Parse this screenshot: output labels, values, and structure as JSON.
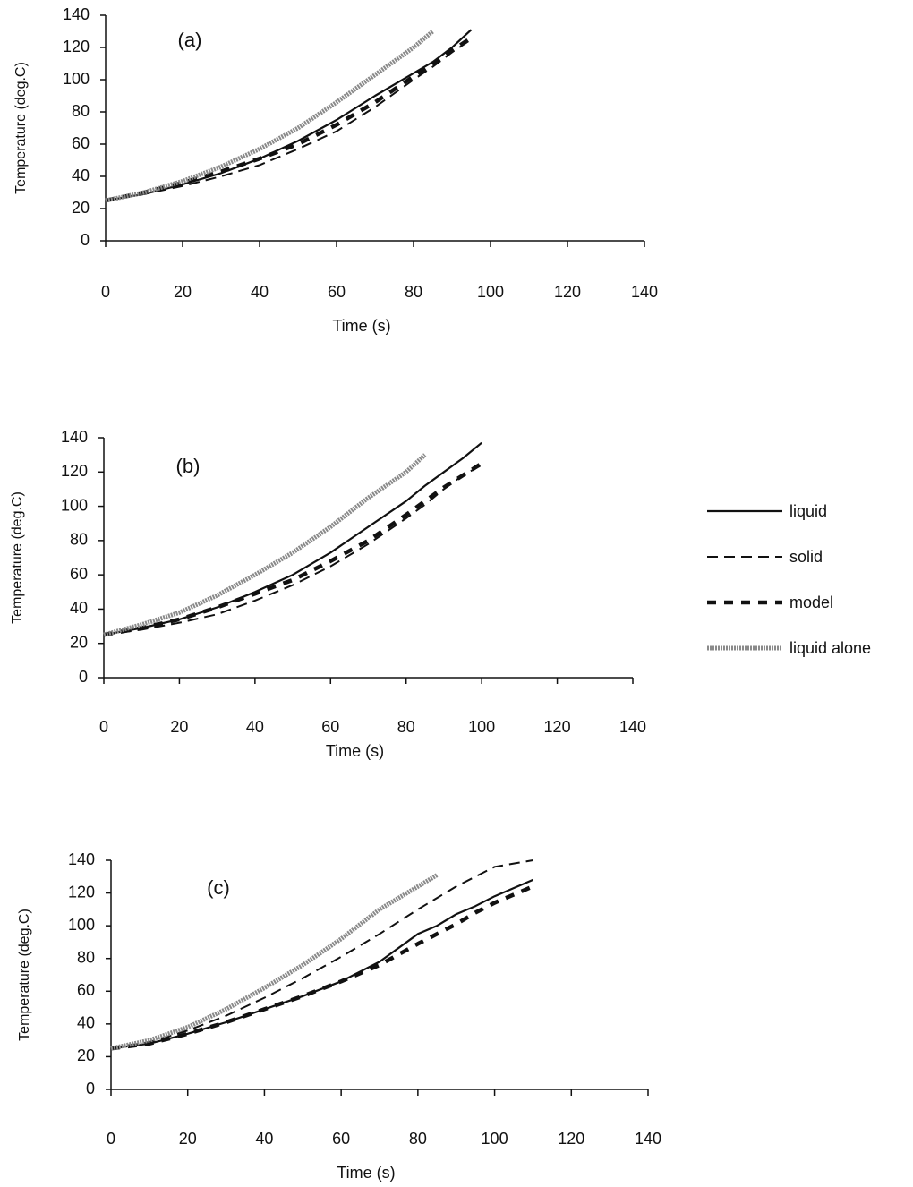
{
  "chart_data": [
    {
      "type": "line",
      "title": "(a)",
      "xlabel": "Time (s)",
      "ylabel": "Temperature (deg.C)",
      "x": [
        0,
        10,
        20,
        30,
        40,
        50,
        60,
        70,
        80,
        85,
        90,
        95,
        100,
        110
      ],
      "series": [
        {
          "color": "#111111",
          "style": "solid",
          "values": [
            25,
            29,
            35,
            42,
            51,
            62,
            75,
            90,
            104,
            111,
            120,
            131,
            null,
            null
          ]
        },
        {
          "color": "#111111",
          "style": "dashed",
          "values": [
            25,
            29,
            34,
            40,
            47,
            57,
            68,
            83,
            100,
            108,
            117,
            125,
            null,
            null
          ]
        },
        {
          "color": "#111111",
          "style": "thick-dashed",
          "values": [
            25,
            30,
            36,
            43,
            51,
            60,
            72,
            86,
            102,
            110,
            118,
            126,
            null,
            null
          ]
        },
        {
          "color": "#8a8a8a",
          "style": "hatched",
          "values": [
            25,
            30,
            37,
            46,
            57,
            70,
            86,
            103,
            120,
            130,
            null,
            null,
            null,
            null
          ]
        }
      ],
      "xlim": [
        0,
        140
      ],
      "xticks": [
        0,
        20,
        40,
        60,
        80,
        100,
        120,
        140
      ],
      "ylim": [
        0,
        140
      ],
      "yticks": [
        0,
        20,
        40,
        60,
        80,
        100,
        120,
        140
      ],
      "grid": false
    },
    {
      "type": "line",
      "title": "(b)",
      "xlabel": "Time (s)",
      "ylabel": "Temperature (deg.C)",
      "x": [
        0,
        10,
        20,
        30,
        40,
        50,
        60,
        70,
        80,
        85,
        90,
        95,
        100,
        110
      ],
      "series": [
        {
          "name": "liquid",
          "color": "#111111",
          "style": "solid",
          "values": [
            25,
            29,
            34,
            41,
            50,
            60,
            73,
            88,
            103,
            112,
            120,
            128,
            137,
            null
          ]
        },
        {
          "name": "solid",
          "color": "#111111",
          "style": "dashed",
          "values": [
            25,
            28,
            32,
            37,
            45,
            54,
            65,
            78,
            93,
            101,
            110,
            118,
            124,
            null
          ]
        },
        {
          "name": "model",
          "color": "#111111",
          "style": "thick-dashed",
          "values": [
            25,
            29,
            34,
            41,
            49,
            57,
            68,
            80,
            95,
            103,
            111,
            118,
            125,
            null
          ]
        },
        {
          "name": "liquid alone",
          "color": "#8a8a8a",
          "style": "hatched",
          "values": [
            25,
            31,
            38,
            48,
            60,
            73,
            88,
            105,
            120,
            130,
            null,
            null,
            null,
            null
          ]
        }
      ],
      "legend": "right",
      "xlim": [
        0,
        140
      ],
      "xticks": [
        0,
        20,
        40,
        60,
        80,
        100,
        120,
        140
      ],
      "ylim": [
        0,
        140
      ],
      "yticks": [
        0,
        20,
        40,
        60,
        80,
        100,
        120,
        140
      ],
      "grid": false
    },
    {
      "type": "line",
      "title": "(c)",
      "xlabel": "Time (s)",
      "ylabel": "Temperature (deg.C)",
      "x": [
        0,
        10,
        20,
        30,
        40,
        50,
        60,
        70,
        80,
        85,
        90,
        95,
        100,
        110
      ],
      "series": [
        {
          "color": "#111111",
          "style": "solid",
          "values": [
            25,
            28,
            34,
            41,
            49,
            57,
            66,
            78,
            95,
            100,
            107,
            112,
            118,
            128
          ]
        },
        {
          "color": "#111111",
          "style": "dashed",
          "values": [
            25,
            29,
            36,
            45,
            56,
            68,
            81,
            95,
            110,
            117,
            124,
            130,
            136,
            140
          ]
        },
        {
          "color": "#111111",
          "style": "thick-dashed",
          "values": [
            25,
            28,
            34,
            41,
            49,
            57,
            66,
            76,
            89,
            95,
            101,
            108,
            114,
            124
          ]
        },
        {
          "color": "#8a8a8a",
          "style": "hatched",
          "values": [
            25,
            30,
            38,
            49,
            62,
            76,
            92,
            110,
            124,
            131,
            null,
            null,
            null,
            null
          ]
        }
      ],
      "xlim": [
        0,
        140
      ],
      "xticks": [
        0,
        20,
        40,
        60,
        80,
        100,
        120,
        140
      ],
      "ylim": [
        0,
        140
      ],
      "yticks": [
        0,
        20,
        40,
        60,
        80,
        100,
        120,
        140
      ],
      "grid": false
    }
  ]
}
